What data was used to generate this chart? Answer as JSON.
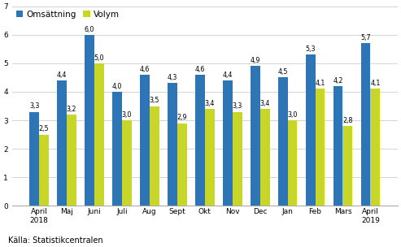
{
  "categories": [
    "April\n2018",
    "Maj",
    "Juni",
    "Juli",
    "Aug",
    "Sept",
    "Okt",
    "Nov",
    "Dec",
    "Jan",
    "Feb",
    "Mars",
    "April\n2019"
  ],
  "omsattning": [
    3.3,
    4.4,
    6.0,
    4.0,
    4.6,
    4.3,
    4.6,
    4.4,
    4.9,
    4.5,
    5.3,
    4.2,
    5.7
  ],
  "volym": [
    2.5,
    3.2,
    5.0,
    3.0,
    3.5,
    2.9,
    3.4,
    3.3,
    3.4,
    3.0,
    4.1,
    2.8,
    4.1
  ],
  "bar_color_omsattning": "#2E75B6",
  "bar_color_volym": "#C8D629",
  "legend_labels": [
    "Omsättning",
    "Volym"
  ],
  "ylim": [
    0,
    7
  ],
  "yticks": [
    0,
    1,
    2,
    3,
    4,
    5,
    6,
    7
  ],
  "source_text": "Källa: Statistikcentralen",
  "bar_width": 0.35,
  "label_fontsize": 5.8,
  "tick_fontsize": 6.5,
  "legend_fontsize": 7.5,
  "source_fontsize": 7.0,
  "grid_color": "#CCCCCC",
  "background_color": "#FFFFFF"
}
